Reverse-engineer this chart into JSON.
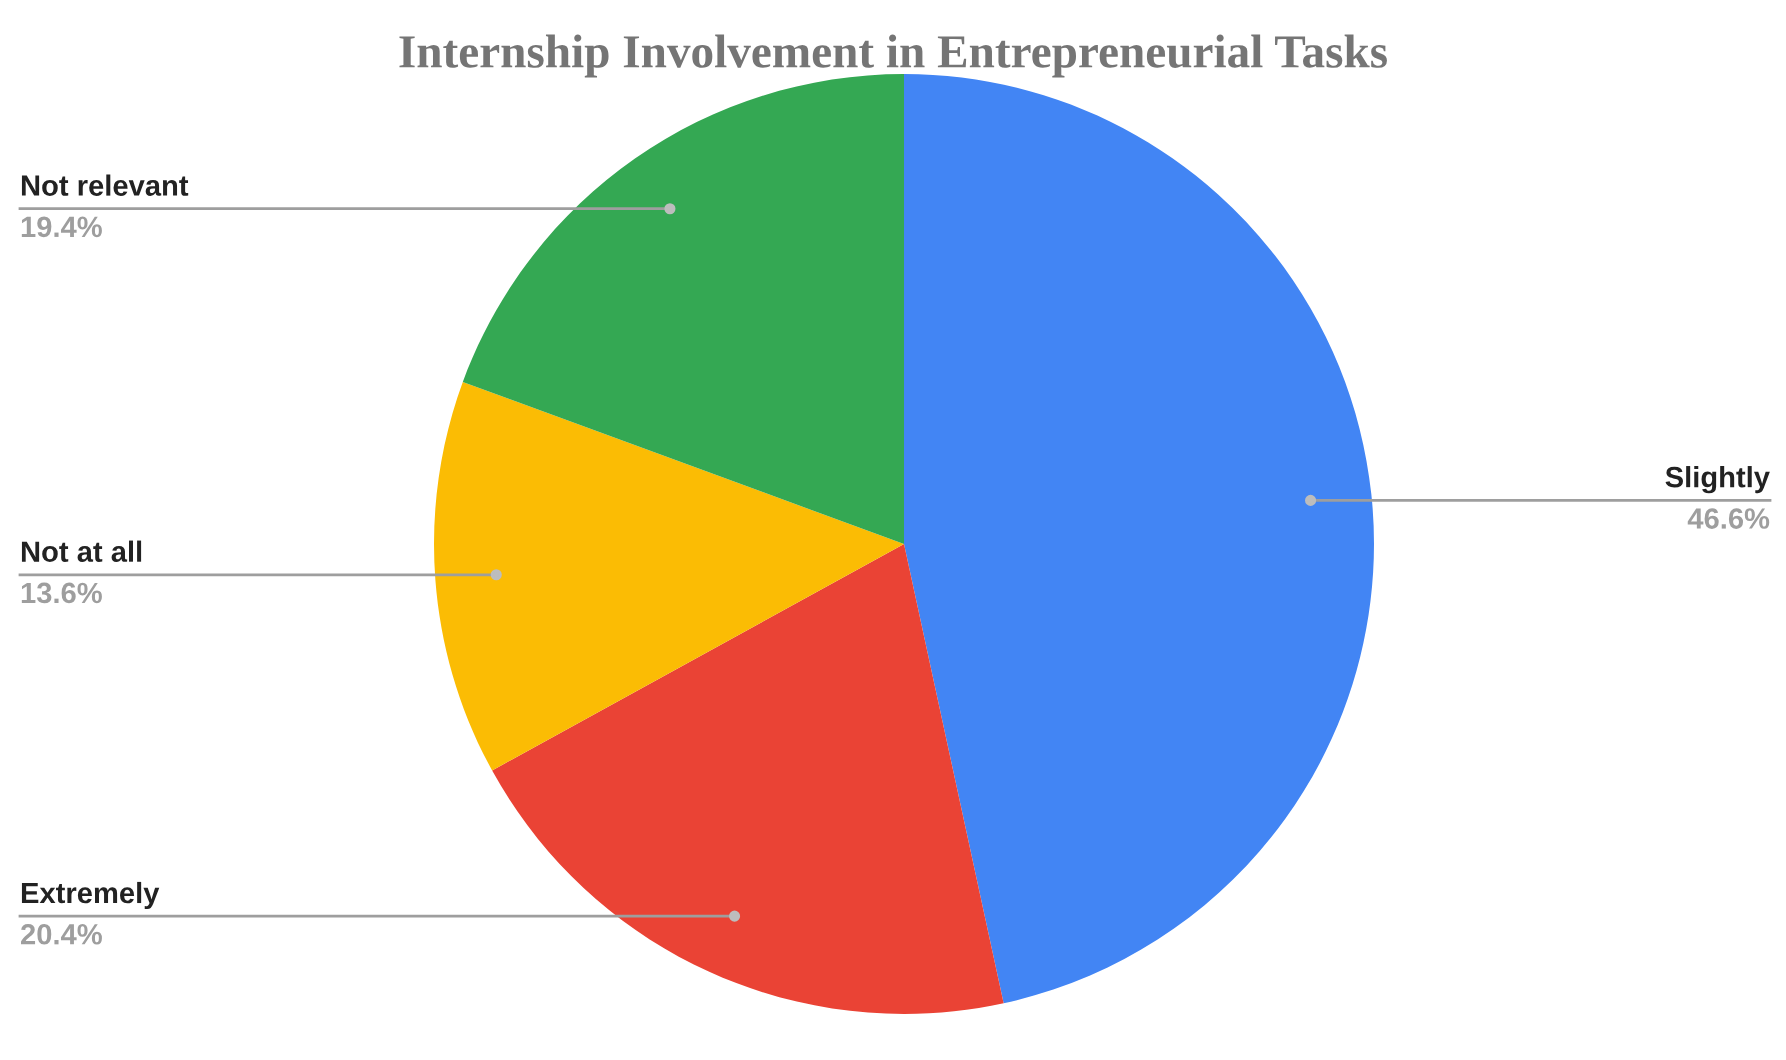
{
  "chart_data": {
    "type": "pie",
    "title": "Internship Involvement in Entrepreneurial Tasks",
    "categories": [
      "Slightly",
      "Extremely",
      "Not at all",
      "Not relevant"
    ],
    "values": [
      46.6,
      20.4,
      13.6,
      19.4
    ],
    "value_labels": [
      "46.6%",
      "20.4%",
      "13.6%",
      "19.4%"
    ],
    "colors": [
      "#4285f4",
      "#ea4335",
      "#fbbc04",
      "#34a853"
    ],
    "legend": false
  }
}
